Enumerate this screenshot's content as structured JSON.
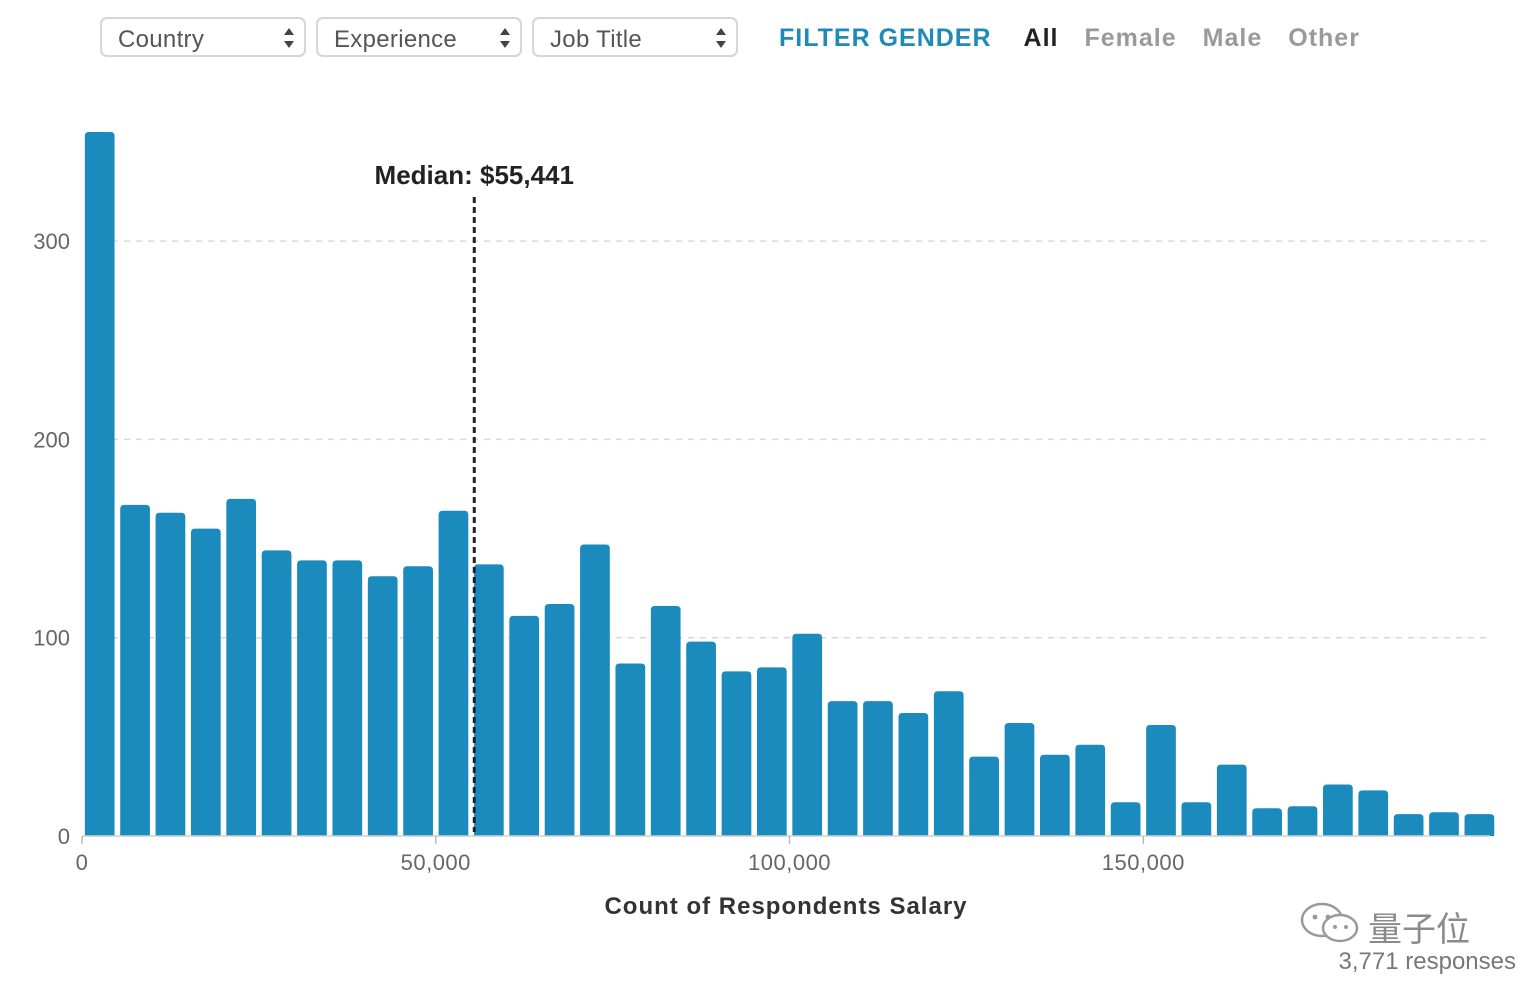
{
  "filters": {
    "selects": [
      {
        "label": "Country"
      },
      {
        "label": "Experience"
      },
      {
        "label": "Job Title"
      }
    ],
    "gender": {
      "title": "FILTER GENDER",
      "options": [
        "All",
        "Female",
        "Male",
        "Other"
      ],
      "selected": "All"
    }
  },
  "chart_data": {
    "type": "bar",
    "title": "",
    "xlabel": "Count of Respondents Salary",
    "ylabel": "",
    "xlim": [
      0,
      199000
    ],
    "ylim": [
      0,
      355
    ],
    "bin_width": 5000,
    "x_ticks": [
      0,
      50000,
      100000,
      150000
    ],
    "x_tick_labels": [
      "0",
      "50,000",
      "100,000",
      "150,000"
    ],
    "y_ticks": [
      0,
      100,
      200,
      300
    ],
    "y_tick_labels": [
      "0",
      "100",
      "200",
      "300"
    ],
    "grid": "horizontal dashed",
    "bar_color": "#1b8abd",
    "x": [
      0,
      5000,
      10000,
      15000,
      20000,
      25000,
      30000,
      35000,
      40000,
      45000,
      50000,
      55000,
      60000,
      65000,
      70000,
      75000,
      80000,
      85000,
      90000,
      95000,
      100000,
      105000,
      110000,
      115000,
      120000,
      125000,
      130000,
      135000,
      140000,
      145000,
      150000,
      155000,
      160000,
      165000,
      170000,
      175000,
      180000,
      185000,
      190000,
      195000
    ],
    "values": [
      355,
      167,
      163,
      155,
      170,
      144,
      139,
      139,
      131,
      136,
      164,
      137,
      111,
      117,
      147,
      87,
      116,
      98,
      83,
      85,
      102,
      68,
      68,
      62,
      73,
      40,
      57,
      41,
      46,
      17,
      56,
      17,
      36,
      14,
      15,
      26,
      23,
      11,
      12,
      11
    ],
    "annotations": [
      {
        "x": 55441,
        "label": "Median: $55,441"
      }
    ]
  },
  "footer": {
    "responses": "3,771 responses",
    "watermark": "量子位"
  }
}
